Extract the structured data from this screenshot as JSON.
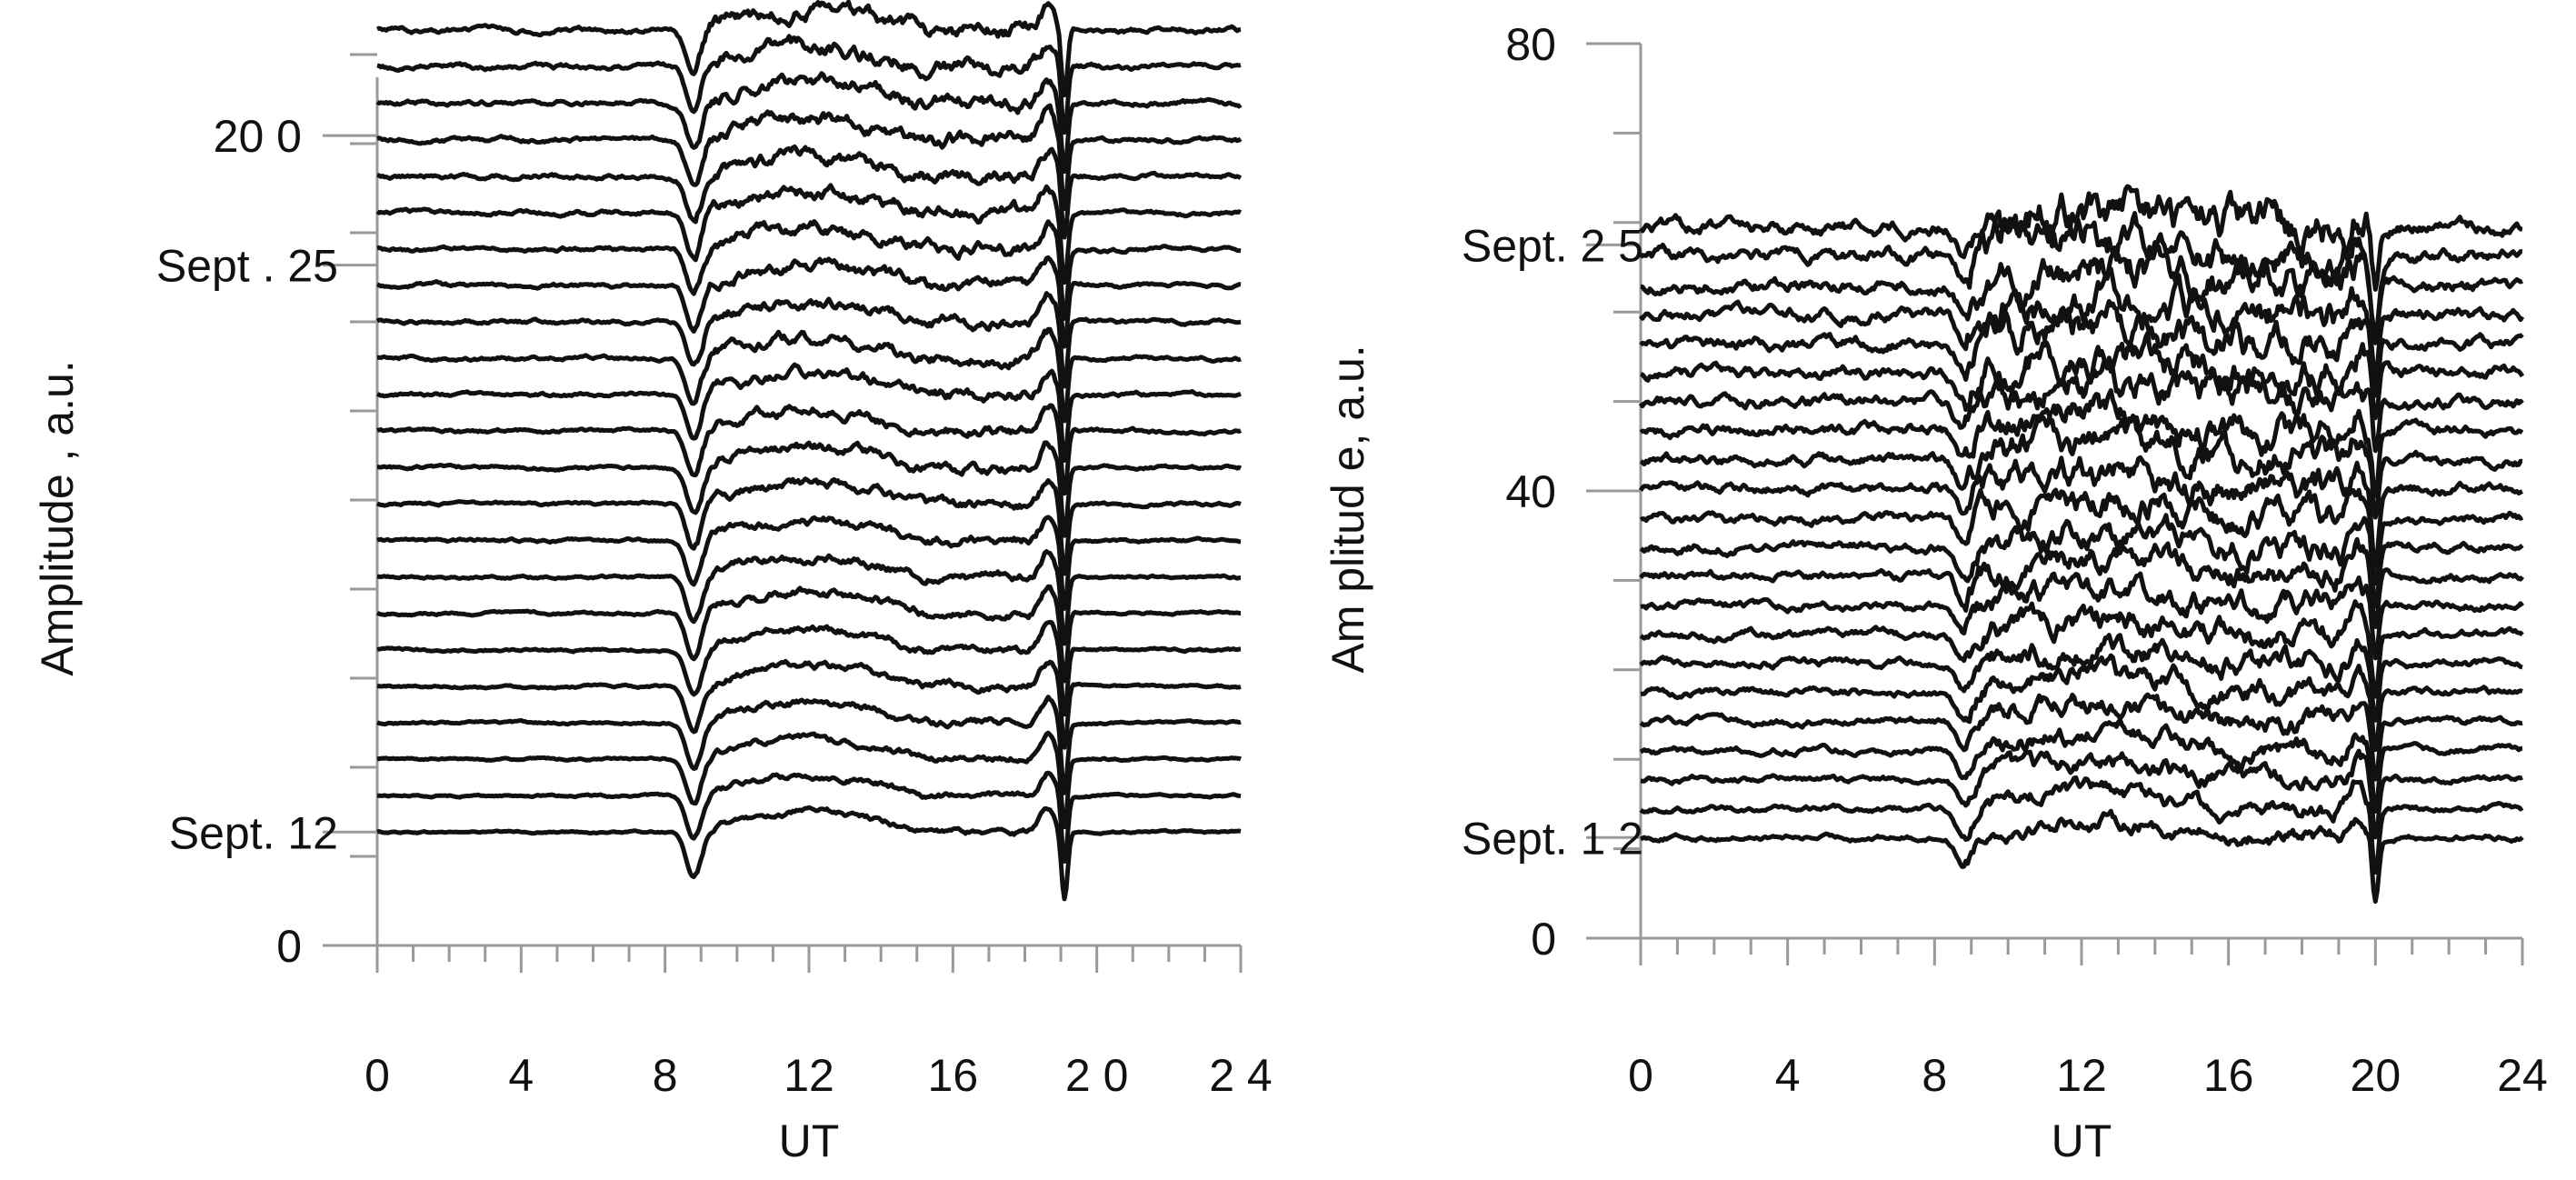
{
  "chart_data": [
    {
      "type": "line",
      "panel": "left",
      "xlabel": "UT",
      "ylabel": "Amplitude , a.u.",
      "xlim": [
        0,
        24
      ],
      "ylim": [
        0,
        220
      ],
      "x_ticks": [
        0,
        4,
        8,
        12,
        16,
        20,
        24
      ],
      "x_tick_labels": [
        "0",
        "4",
        "8",
        "12",
        "16",
        "2 0",
        "2 4"
      ],
      "y_ticks": [
        0,
        200
      ],
      "y_tick_labels": [
        "0",
        "20 0"
      ],
      "day_labels": [
        {
          "text": "Sept. 12",
          "y": 28
        },
        {
          "text": "Sept . 25",
          "y": 168
        }
      ],
      "traces": {
        "count": 23,
        "first_baseline": 28,
        "baseline_step": 9,
        "dip1_ut": 8.8,
        "dip1_depth": 11,
        "dip2_ut": 19.1,
        "dip2_depth": 17,
        "day_hump": 5
      },
      "color": "#111111"
    },
    {
      "type": "line",
      "panel": "right",
      "xlabel": "UT",
      "ylabel": "Am plitud e, a.u.",
      "xlim": [
        0,
        24
      ],
      "ylim": [
        0,
        80
      ],
      "x_ticks": [
        0,
        4,
        8,
        12,
        16,
        20,
        24
      ],
      "x_tick_labels": [
        "0",
        "4",
        "8",
        "12",
        "16",
        "20",
        "24"
      ],
      "y_ticks": [
        0,
        40,
        80
      ],
      "y_tick_labels": [
        "0",
        "40",
        "80"
      ],
      "day_labels": [
        {
          "text": "Sept. 1  2",
          "y": 9
        },
        {
          "text": "Sept. 2  5",
          "y": 62
        }
      ],
      "traces": {
        "count": 22,
        "first_baseline": 9,
        "baseline_step": 2.6,
        "dip1_ut": 8.8,
        "dip1_depth": 2.4,
        "dip2_ut": 20,
        "dip2_depth": 5.5,
        "day_hump": 1.5
      },
      "color": "#111111"
    }
  ]
}
